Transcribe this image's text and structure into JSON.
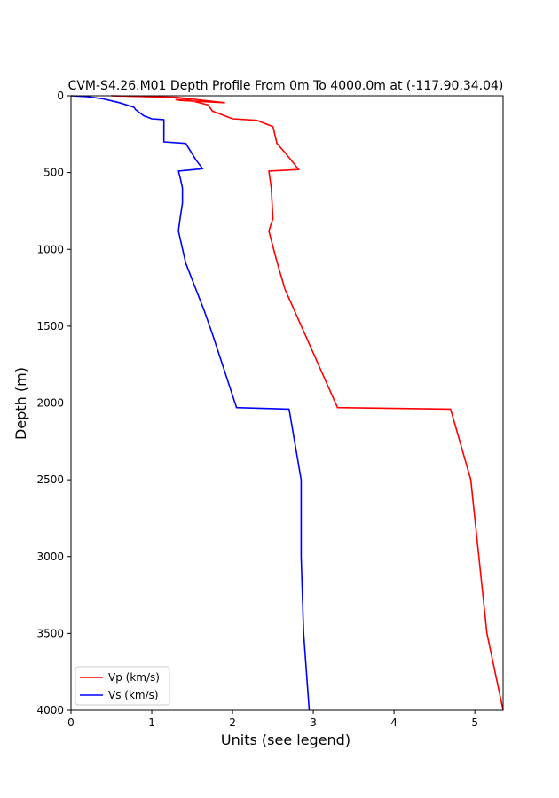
{
  "chart_data": {
    "type": "line",
    "title": "CVM-S4.26.M01 Depth Profile From 0m To 4000.0m at (-117.90,34.04)",
    "xlabel": "Units (see legend)",
    "ylabel": "Depth (m)",
    "xlim": [
      0,
      5.35
    ],
    "ylim": [
      4000,
      0
    ],
    "y_inverted": true,
    "xticks": [
      0,
      1,
      2,
      3,
      4,
      5
    ],
    "yticks": [
      0,
      500,
      1000,
      1500,
      2000,
      2500,
      3000,
      3500,
      4000
    ],
    "grid": false,
    "legend_position": "lower-left",
    "series": [
      {
        "name": "Vp (km/s)",
        "color": "#ff0000",
        "points": [
          [
            0.5,
            0
          ],
          [
            1.3,
            10
          ],
          [
            1.9,
            45
          ],
          [
            1.35,
            30
          ],
          [
            1.3,
            25
          ],
          [
            1.4,
            20
          ],
          [
            1.7,
            60
          ],
          [
            1.75,
            100
          ],
          [
            2.0,
            150
          ],
          [
            2.3,
            160
          ],
          [
            2.5,
            200
          ],
          [
            2.55,
            310
          ],
          [
            2.65,
            370
          ],
          [
            2.82,
            480
          ],
          [
            2.45,
            490
          ],
          [
            2.48,
            600
          ],
          [
            2.5,
            800
          ],
          [
            2.45,
            880
          ],
          [
            2.55,
            1080
          ],
          [
            2.65,
            1260
          ],
          [
            3.3,
            2030
          ],
          [
            4.7,
            2040
          ],
          [
            4.95,
            2500
          ],
          [
            5.15,
            3500
          ],
          [
            5.35,
            4000
          ]
        ]
      },
      {
        "name": "Vs (km/s)",
        "color": "#0000ff",
        "points": [
          [
            0.0,
            0
          ],
          [
            0.2,
            5
          ],
          [
            0.4,
            20
          ],
          [
            0.6,
            45
          ],
          [
            0.78,
            75
          ],
          [
            0.8,
            90
          ],
          [
            0.9,
            130
          ],
          [
            1.0,
            150
          ],
          [
            1.15,
            155
          ],
          [
            1.15,
            300
          ],
          [
            1.42,
            310
          ],
          [
            1.55,
            420
          ],
          [
            1.63,
            475
          ],
          [
            1.33,
            490
          ],
          [
            1.35,
            530
          ],
          [
            1.38,
            600
          ],
          [
            1.38,
            700
          ],
          [
            1.35,
            800
          ],
          [
            1.33,
            880
          ],
          [
            1.42,
            1090
          ],
          [
            1.65,
            1400
          ],
          [
            1.75,
            1550
          ],
          [
            2.05,
            2030
          ],
          [
            2.7,
            2040
          ],
          [
            2.85,
            2500
          ],
          [
            2.85,
            3000
          ],
          [
            2.88,
            3500
          ],
          [
            2.95,
            4000
          ]
        ]
      }
    ]
  }
}
